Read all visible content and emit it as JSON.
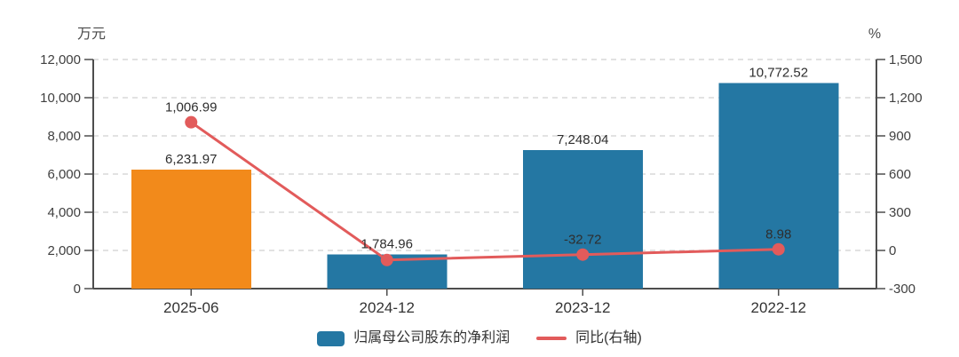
{
  "colors": {
    "bar_blue": "#2477A3",
    "bar_orange": "#F28A1B",
    "line_red": "#E25B5B",
    "grid": "#D9D9D9",
    "axis": "#4D4D4D",
    "background": "#FFFFFF"
  },
  "chart_data": {
    "type": "bar",
    "categories": [
      "2025-06",
      "2024-12",
      "2023-12",
      "2022-12"
    ],
    "series": [
      {
        "name": "归属母公司股东的净利润",
        "type": "bar",
        "axis": "left",
        "values": [
          6231.97,
          1784.96,
          7248.04,
          10772.52
        ],
        "labels": [
          "6,231.97",
          "1,784.96",
          "7,248.04",
          "10,772.52"
        ],
        "colors": [
          "#F28A1B",
          "#2477A3",
          "#2477A3",
          "#2477A3"
        ]
      },
      {
        "name": "同比(右轴)",
        "type": "line",
        "axis": "right",
        "values": [
          1006.99,
          -75.37,
          -32.72,
          8.98
        ],
        "labels": [
          "1,006.99",
          null,
          "-32.72",
          "8.98"
        ],
        "color": "#E25B5B"
      }
    ],
    "left_axis": {
      "title": "万元",
      "min": 0,
      "max": 12000,
      "tick_values": [
        0,
        2000,
        4000,
        6000,
        8000,
        10000,
        12000
      ],
      "tick_labels": [
        "0",
        "2,000",
        "4,000",
        "6,000",
        "8,000",
        "10,000",
        "12,000"
      ]
    },
    "right_axis": {
      "title": "%",
      "min": -300,
      "max": 1500,
      "tick_values": [
        -300,
        0,
        300,
        600,
        900,
        1200,
        1500
      ],
      "tick_labels": [
        "-300",
        "0",
        "300",
        "600",
        "900",
        "1,200",
        "1,500"
      ]
    },
    "grid": true,
    "legend_position": "bottom"
  },
  "legend": {
    "items": [
      {
        "label": "归属母公司股东的净利润",
        "marker": "bar-swatch"
      },
      {
        "label": "同比(右轴)",
        "marker": "line-swatch"
      }
    ]
  }
}
